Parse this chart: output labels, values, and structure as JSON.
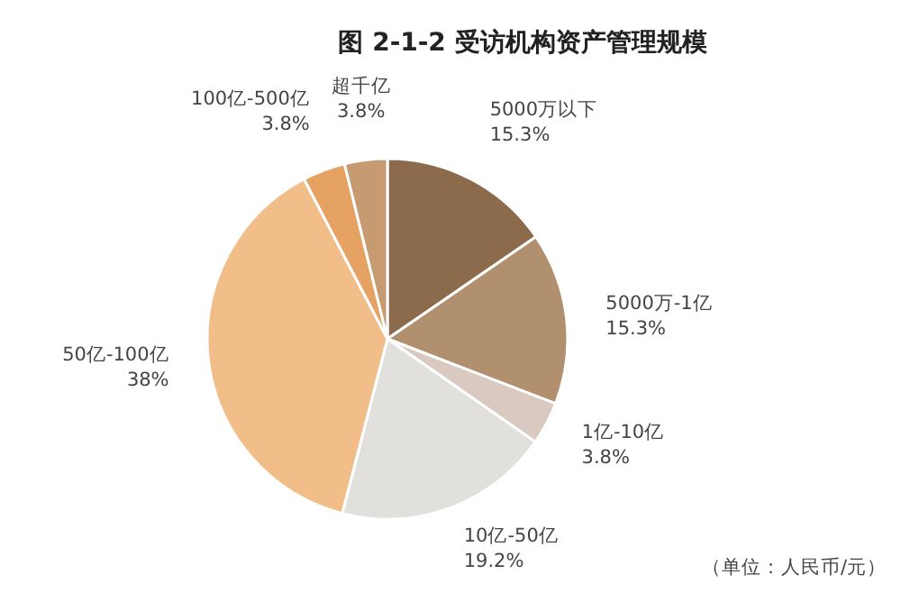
{
  "chart_data": {
    "type": "pie",
    "title": "图 2-1-2 受访机构资产管理规模",
    "categories": [
      "5000万以下",
      "5000万-1亿",
      "1亿-10亿",
      "10亿-50亿",
      "50亿-100亿",
      "100亿-500亿",
      "超千亿"
    ],
    "values": [
      15.3,
      15.3,
      3.8,
      19.2,
      38,
      3.8,
      3.8
    ],
    "value_labels": [
      "15.3%",
      "15.3%",
      "3.8%",
      "19.2%",
      "38%",
      "3.8%",
      "3.8%"
    ],
    "colors": [
      "#8c6a4c",
      "#b0906f",
      "#d9c9c0",
      "#e2e0dd",
      "#f1be8a",
      "#e6a263",
      "#c79b72"
    ],
    "annotations": [
      "（单位：人民币/元）"
    ]
  }
}
